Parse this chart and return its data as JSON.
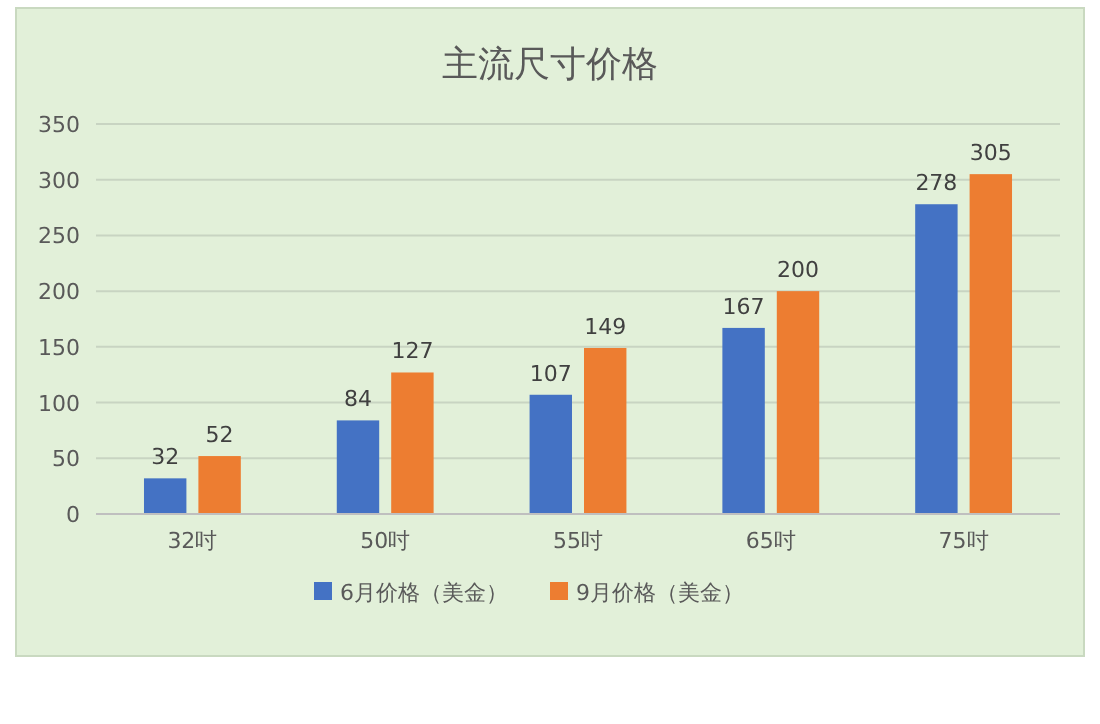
{
  "chart_data": {
    "type": "bar",
    "title": "主流尺寸价格",
    "categories": [
      "32吋",
      "50吋",
      "55吋",
      "65吋",
      "75吋"
    ],
    "series": [
      {
        "name": "6月价格（美金）",
        "color": "#4472c4",
        "values": [
          32,
          84,
          107,
          167,
          278
        ]
      },
      {
        "name": "9月价格（美金）",
        "color": "#ed7d31",
        "values": [
          52,
          127,
          149,
          200,
          305
        ]
      }
    ],
    "ylim": [
      0,
      350
    ],
    "yticks": [
      0,
      50,
      100,
      150,
      200,
      250,
      300,
      350
    ],
    "grid": "y",
    "data_labels": true,
    "legend": "bottom"
  }
}
